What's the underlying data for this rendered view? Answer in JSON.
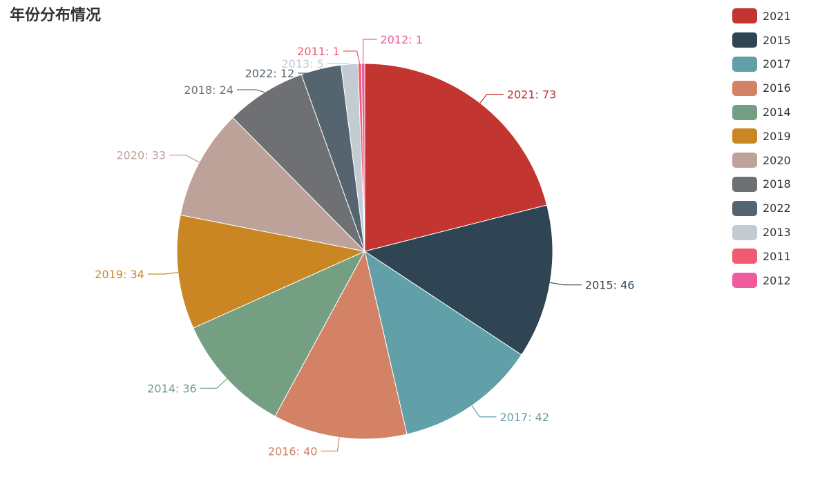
{
  "chart_data": {
    "type": "pie",
    "title": "年份分布情况",
    "categories": [
      "2021",
      "2015",
      "2017",
      "2016",
      "2014",
      "2019",
      "2020",
      "2018",
      "2022",
      "2013",
      "2011",
      "2012"
    ],
    "values": [
      73,
      46,
      42,
      40,
      36,
      34,
      33,
      24,
      12,
      5,
      1,
      1
    ],
    "colors": [
      "#c23531",
      "#2f4554",
      "#61a0a8",
      "#d48265",
      "#749f83",
      "#ca8622",
      "#bda29a",
      "#6e7074",
      "#546570",
      "#c4ccd3",
      "#f05b72",
      "#ef5b9c"
    ],
    "labels": [
      "2021: 73",
      "2015: 46",
      "2017: 42",
      "2016: 40",
      "2014: 36",
      "2019: 34",
      "2020: 33",
      "2018: 24",
      "2022: 12",
      "2013: 5",
      "2011: 1",
      "2012: 1"
    ],
    "legend_position": "top-right"
  }
}
